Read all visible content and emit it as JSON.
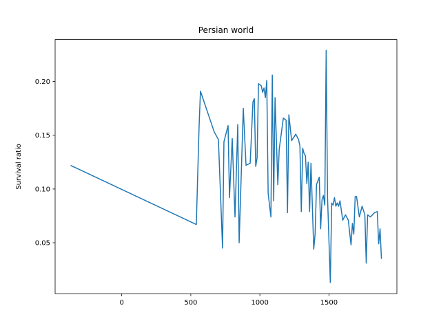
{
  "chart_data": {
    "type": "line",
    "title": "Persian world",
    "ylabel": "Survival ratio",
    "color": "#1f77b4",
    "x": [
      -370,
      540,
      560,
      570,
      670,
      700,
      730,
      740,
      770,
      780,
      800,
      820,
      840,
      850,
      880,
      900,
      930,
      950,
      960,
      970,
      980,
      990,
      1010,
      1020,
      1030,
      1040,
      1050,
      1060,
      1080,
      1090,
      1100,
      1110,
      1130,
      1140,
      1170,
      1190,
      1200,
      1210,
      1230,
      1260,
      1280,
      1290,
      1300,
      1310,
      1320,
      1330,
      1340,
      1350,
      1360,
      1370,
      1390,
      1400,
      1410,
      1430,
      1440,
      1450,
      1460,
      1470,
      1480,
      1490,
      1510,
      1520,
      1530,
      1540,
      1550,
      1560,
      1570,
      1580,
      1600,
      1620,
      1640,
      1660,
      1670,
      1680,
      1690,
      1700,
      1720,
      1740,
      1760,
      1770,
      1780,
      1800,
      1830,
      1850,
      1860,
      1870,
      1880
    ],
    "values": [
      0.122,
      0.067,
      0.158,
      0.191,
      0.153,
      0.146,
      0.045,
      0.144,
      0.159,
      0.092,
      0.147,
      0.074,
      0.16,
      0.05,
      0.175,
      0.122,
      0.124,
      0.181,
      0.184,
      0.121,
      0.129,
      0.198,
      0.196,
      0.19,
      0.194,
      0.185,
      0.201,
      0.096,
      0.074,
      0.206,
      0.089,
      0.185,
      0.104,
      0.137,
      0.166,
      0.164,
      0.078,
      0.169,
      0.145,
      0.151,
      0.146,
      0.14,
      0.079,
      0.138,
      0.133,
      0.131,
      0.105,
      0.125,
      0.079,
      0.124,
      0.044,
      0.058,
      0.104,
      0.111,
      0.063,
      0.09,
      0.094,
      0.085,
      0.229,
      0.092,
      0.013,
      0.087,
      0.085,
      0.092,
      0.084,
      0.087,
      0.084,
      0.089,
      0.071,
      0.076,
      0.071,
      0.048,
      0.068,
      0.058,
      0.093,
      0.093,
      0.074,
      0.084,
      0.076,
      0.031,
      0.076,
      0.074,
      0.078,
      0.079,
      0.049,
      0.063,
      0.035
    ],
    "xlim": [
      -482,
      1992
    ],
    "ylim": [
      0.0026,
      0.239
    ],
    "xticks": [
      0,
      500,
      1000,
      1500
    ],
    "yticks": [
      0.05,
      {
        "value": 0.1,
        "label": "0.10"
      },
      0.15,
      {
        "value": 0.2,
        "label": "0.20"
      }
    ]
  }
}
